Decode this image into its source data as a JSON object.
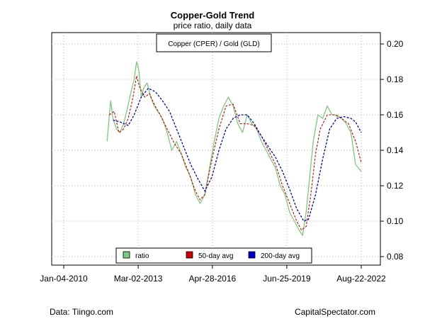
{
  "title": "Copper-Gold Trend",
  "subtitle": "price ratio, daily data",
  "footer": {
    "left": "Data: Tiingo.com",
    "right": "CapitalSpectator.com"
  },
  "colors": {
    "ratio": "#7dc97d",
    "avg50": "#cc0000",
    "avg200": "#0000cc",
    "grid": "#b0b0b0"
  },
  "chart_data": {
    "type": "line",
    "annotation": "Copper (CPER) / Gold (GLD)",
    "x_ticks": [
      "Jan-04-2010",
      "Mar-02-2013",
      "Apr-28-2016",
      "Jun-25-2019",
      "Aug-22-2022"
    ],
    "x_tick_years": [
      2010.01,
      2013.17,
      2016.32,
      2019.48,
      2022.64
    ],
    "xlim": [
      2010.01,
      2022.64
    ],
    "y_ticks": [
      "0.08",
      "0.10",
      "0.12",
      "0.14",
      "0.16",
      "0.18",
      "0.20"
    ],
    "ylim": [
      0.08,
      0.2
    ],
    "grid": true,
    "legend_position": "bottom-center",
    "series": [
      {
        "name": "ratio",
        "key": "ratio",
        "x": [
          2011.85,
          2012.0,
          2012.1,
          2012.25,
          2012.4,
          2012.55,
          2012.7,
          2012.85,
          2013.0,
          2013.1,
          2013.2,
          2013.3,
          2013.4,
          2013.55,
          2013.7,
          2013.85,
          2014.0,
          2014.2,
          2014.4,
          2014.6,
          2014.8,
          2015.0,
          2015.2,
          2015.4,
          2015.6,
          2015.8,
          2016.0,
          2016.2,
          2016.4,
          2016.6,
          2016.8,
          2017.0,
          2017.2,
          2017.4,
          2017.6,
          2017.8,
          2018.0,
          2018.2,
          2018.4,
          2018.6,
          2018.8,
          2019.0,
          2019.2,
          2019.4,
          2019.6,
          2019.8,
          2020.0,
          2020.15,
          2020.3,
          2020.45,
          2020.6,
          2020.8,
          2021.0,
          2021.2,
          2021.4,
          2021.6,
          2021.8,
          2022.0,
          2022.2,
          2022.4,
          2022.64
        ],
        "y": [
          0.145,
          0.168,
          0.158,
          0.152,
          0.15,
          0.155,
          0.163,
          0.172,
          0.18,
          0.19,
          0.185,
          0.17,
          0.175,
          0.178,
          0.17,
          0.165,
          0.162,
          0.158,
          0.15,
          0.14,
          0.145,
          0.138,
          0.13,
          0.125,
          0.115,
          0.11,
          0.115,
          0.13,
          0.145,
          0.158,
          0.165,
          0.17,
          0.165,
          0.155,
          0.15,
          0.16,
          0.155,
          0.152,
          0.145,
          0.14,
          0.135,
          0.13,
          0.12,
          0.115,
          0.105,
          0.1,
          0.095,
          0.092,
          0.105,
          0.125,
          0.145,
          0.16,
          0.158,
          0.165,
          0.16,
          0.16,
          0.158,
          0.155,
          0.15,
          0.132,
          0.128
        ]
      },
      {
        "name": "50-day avg",
        "key": "avg50",
        "x": [
          2011.95,
          2012.15,
          2012.35,
          2012.55,
          2012.75,
          2012.95,
          2013.1,
          2013.25,
          2013.45,
          2013.65,
          2013.85,
          2014.1,
          2014.4,
          2014.7,
          2015.0,
          2015.3,
          2015.6,
          2015.8,
          2016.0,
          2016.3,
          2016.6,
          2016.9,
          2017.2,
          2017.5,
          2017.8,
          2018.1,
          2018.4,
          2018.7,
          2019.0,
          2019.3,
          2019.6,
          2019.9,
          2020.1,
          2020.3,
          2020.5,
          2020.7,
          2020.9,
          2021.2,
          2021.5,
          2021.8,
          2022.1,
          2022.4,
          2022.64
        ],
        "y": [
          0.16,
          0.162,
          0.15,
          0.152,
          0.158,
          0.17,
          0.182,
          0.175,
          0.17,
          0.172,
          0.166,
          0.16,
          0.152,
          0.144,
          0.138,
          0.128,
          0.117,
          0.112,
          0.115,
          0.135,
          0.152,
          0.165,
          0.166,
          0.155,
          0.155,
          0.154,
          0.148,
          0.14,
          0.132,
          0.12,
          0.11,
          0.1,
          0.095,
          0.097,
          0.115,
          0.138,
          0.152,
          0.16,
          0.16,
          0.158,
          0.155,
          0.145,
          0.133
        ]
      },
      {
        "name": "200-day avg",
        "key": "avg200",
        "x": [
          2012.1,
          2012.4,
          2012.75,
          2013.0,
          2013.3,
          2013.6,
          2013.9,
          2014.2,
          2014.5,
          2014.8,
          2015.1,
          2015.4,
          2015.7,
          2016.0,
          2016.3,
          2016.6,
          2016.9,
          2017.2,
          2017.5,
          2017.8,
          2018.1,
          2018.4,
          2018.7,
          2019.0,
          2019.3,
          2019.6,
          2019.9,
          2020.2,
          2020.4,
          2020.7,
          2021.0,
          2021.3,
          2021.6,
          2021.9,
          2022.2,
          2022.4,
          2022.64
        ],
        "y": [
          0.157,
          0.156,
          0.154,
          0.16,
          0.17,
          0.175,
          0.173,
          0.168,
          0.162,
          0.152,
          0.142,
          0.132,
          0.124,
          0.117,
          0.125,
          0.14,
          0.152,
          0.158,
          0.16,
          0.16,
          0.155,
          0.148,
          0.142,
          0.136,
          0.128,
          0.118,
          0.107,
          0.1,
          0.101,
          0.115,
          0.135,
          0.152,
          0.158,
          0.159,
          0.158,
          0.156,
          0.15
        ]
      }
    ]
  }
}
